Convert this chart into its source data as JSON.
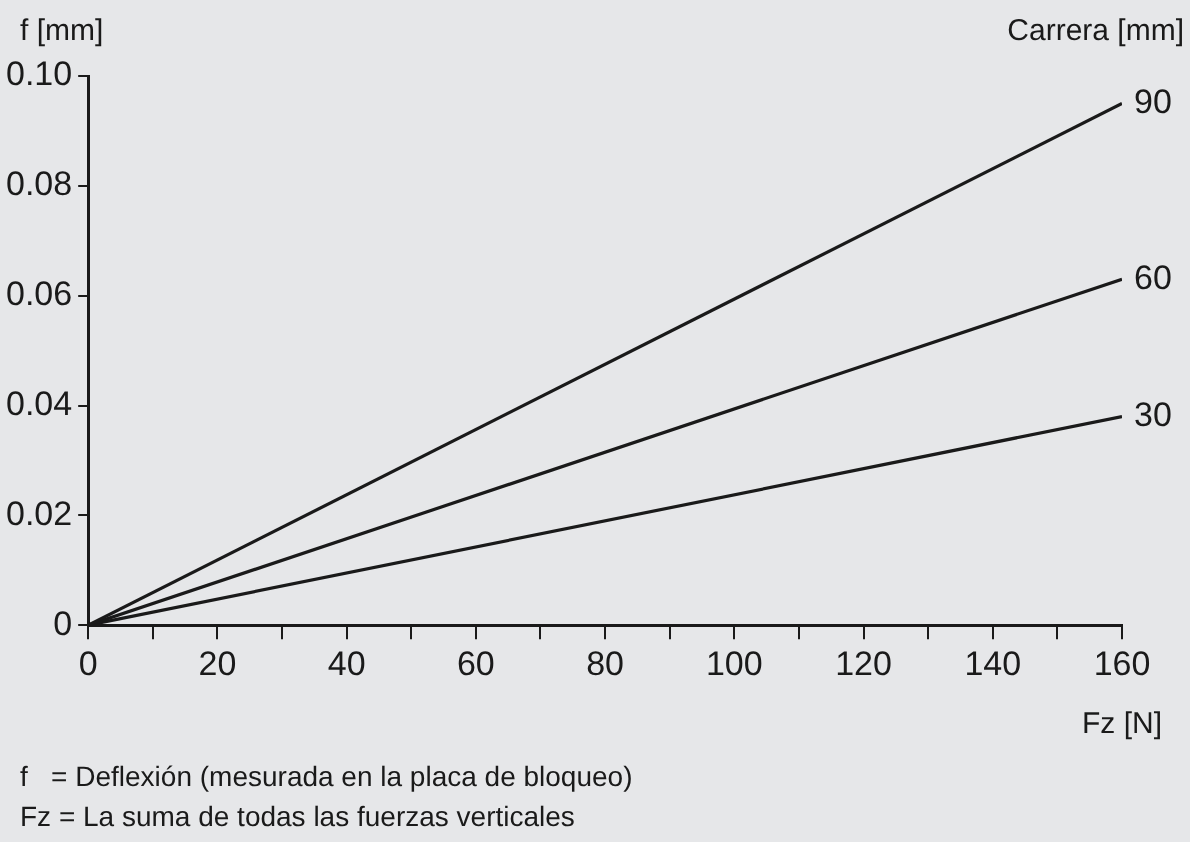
{
  "chart_data": {
    "type": "line",
    "ylabel": "f [mm]",
    "xlabel": "Fz [N]",
    "legend_title": "Carrera [mm]",
    "x": [
      0,
      160
    ],
    "series": [
      {
        "name": "90",
        "color": "#1a1a1a",
        "values": [
          0,
          0.095
        ]
      },
      {
        "name": "60",
        "color": "#1a1a1a",
        "values": [
          0,
          0.063
        ]
      },
      {
        "name": "30",
        "color": "#1a1a1a",
        "values": [
          0,
          0.038
        ]
      }
    ],
    "xlim": [
      0,
      160
    ],
    "xticks": [
      0,
      {
        "value": 10,
        "label": null
      },
      20,
      {
        "value": 30,
        "label": null
      },
      40,
      {
        "value": 50,
        "label": null
      },
      60,
      {
        "value": 70,
        "label": null
      },
      80,
      {
        "value": 90,
        "label": null
      },
      100,
      {
        "value": 110,
        "label": null
      },
      120,
      {
        "value": 130,
        "label": null
      },
      140,
      {
        "value": 150,
        "label": null
      },
      160
    ],
    "ylim": [
      0,
      0.1
    ],
    "yticks": [
      {
        "value": 0,
        "label": "0"
      },
      {
        "value": 0.02,
        "label": "0.02"
      },
      {
        "value": 0.04,
        "label": "0.04"
      },
      {
        "value": 0.06,
        "label": "0.06"
      },
      {
        "value": 0.08,
        "label": "0.08"
      },
      {
        "value": 0.1,
        "label": "0.10"
      }
    ],
    "grid": false,
    "legend": false,
    "marker": "none",
    "line_style": "solid",
    "annotations": [
      "f   = Deflexión (mesurada en la placa de bloqueo)",
      "Fz = La suma de todas las fuerzas verticales"
    ]
  }
}
